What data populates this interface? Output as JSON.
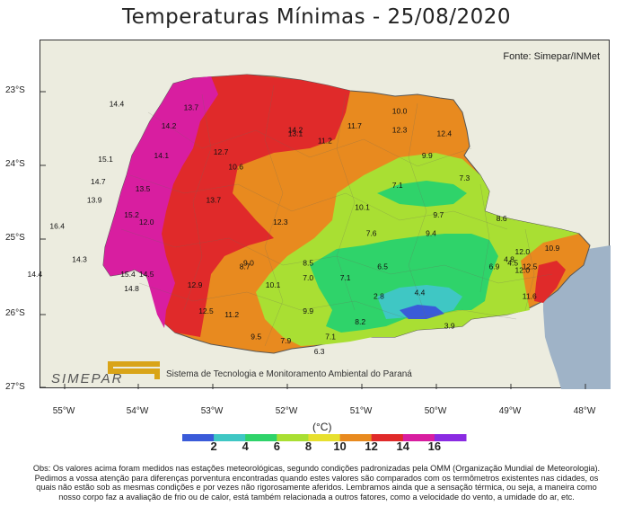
{
  "title": "Temperaturas Mínimas - 25/08/2020",
  "source": "Fonte: Simepar/INMet",
  "logo": {
    "name": "SIMEPAR",
    "subtitle": "Sistema de Tecnologia e Monitoramento Ambiental do Paraná"
  },
  "axes": {
    "lat_labels": [
      "23°S",
      "24°S",
      "25°S",
      "26°S",
      "27°S"
    ],
    "lon_labels": [
      "55°W",
      "54°W",
      "53°W",
      "52°W",
      "51°W",
      "50°W",
      "49°W",
      "48°W"
    ]
  },
  "legend": {
    "unit": "(°C)",
    "ticks": [
      "2",
      "4",
      "6",
      "8",
      "10",
      "12",
      "14",
      "16"
    ],
    "colors": [
      "#3a5bd9",
      "#3fc7c4",
      "#2fd36a",
      "#a9df33",
      "#e7e02f",
      "#e88a1f",
      "#e02a2a",
      "#d81ea0",
      "#8a2be2"
    ]
  },
  "colors": {
    "c16": "#d81ea0",
    "c14": "#e02a2a",
    "c12": "#e88a1f",
    "c10": "#a9df33",
    "c8": "#2fd36a",
    "c6": "#3fc7c4",
    "c4": "#3a5bd9",
    "sea": "#9fb3c7",
    "land": "#ececdf"
  },
  "stations": [
    {
      "v": "14.4",
      "x": -54.4,
      "y": -23.2
    },
    {
      "v": "13.7",
      "x": -53.4,
      "y": -23.25
    },
    {
      "v": "14.2",
      "x": -53.7,
      "y": -23.5
    },
    {
      "v": "14.2",
      "x": -52.0,
      "y": -23.55
    },
    {
      "v": "13.1",
      "x": -52.0,
      "y": -23.6
    },
    {
      "v": "11.2",
      "x": -51.6,
      "y": -23.7
    },
    {
      "v": "11.7",
      "x": -51.2,
      "y": -23.5
    },
    {
      "v": "10.0",
      "x": -50.6,
      "y": -23.3
    },
    {
      "v": "12.3",
      "x": -50.6,
      "y": -23.55
    },
    {
      "v": "12.4",
      "x": -50.0,
      "y": -23.6
    },
    {
      "v": "15.1",
      "x": -54.55,
      "y": -23.95
    },
    {
      "v": "14.1",
      "x": -53.8,
      "y": -23.9
    },
    {
      "v": "12.7",
      "x": -53.0,
      "y": -23.85
    },
    {
      "v": "9.9",
      "x": -50.2,
      "y": -23.9
    },
    {
      "v": "10.6",
      "x": -52.8,
      "y": -24.05
    },
    {
      "v": "14.7",
      "x": -54.65,
      "y": -24.25
    },
    {
      "v": "13.5",
      "x": -54.05,
      "y": -24.35
    },
    {
      "v": "13.9",
      "x": -54.7,
      "y": -24.5
    },
    {
      "v": "13.7",
      "x": -53.1,
      "y": -24.5
    },
    {
      "v": "7.1",
      "x": -50.6,
      "y": -24.3
    },
    {
      "v": "7.3",
      "x": -49.7,
      "y": -24.2
    },
    {
      "v": "10.1",
      "x": -51.1,
      "y": -24.6
    },
    {
      "v": "15.2",
      "x": -54.2,
      "y": -24.7
    },
    {
      "v": "12.0",
      "x": -54.0,
      "y": -24.8
    },
    {
      "v": "12.3",
      "x": -52.2,
      "y": -24.8
    },
    {
      "v": "9.7",
      "x": -50.05,
      "y": -24.7
    },
    {
      "v": "8.6",
      "x": -49.2,
      "y": -24.75
    },
    {
      "v": "16.4",
      "x": -55.2,
      "y": -24.85
    },
    {
      "v": "7.6",
      "x": -50.95,
      "y": -24.95
    },
    {
      "v": "9.4",
      "x": -50.15,
      "y": -24.95
    },
    {
      "v": "12.0",
      "x": -48.95,
      "y": -25.2
    },
    {
      "v": "10.9",
      "x": -48.55,
      "y": -25.15
    },
    {
      "v": "14.3",
      "x": -54.9,
      "y": -25.3
    },
    {
      "v": "9.0",
      "x": -52.6,
      "y": -25.35
    },
    {
      "v": "8.7",
      "x": -52.65,
      "y": -25.4
    },
    {
      "v": "8.5",
      "x": -51.8,
      "y": -25.35
    },
    {
      "v": "6.5",
      "x": -50.8,
      "y": -25.4
    },
    {
      "v": "4.8",
      "x": -49.1,
      "y": -25.3
    },
    {
      "v": "4.5",
      "x": -49.05,
      "y": -25.35
    },
    {
      "v": "6.9",
      "x": -49.3,
      "y": -25.4
    },
    {
      "v": "12.5",
      "x": -48.85,
      "y": -25.4
    },
    {
      "v": "12.0",
      "x": -48.95,
      "y": -25.45
    },
    {
      "v": "14.4",
      "x": -55.5,
      "y": -25.5
    },
    {
      "v": "15.4",
      "x": -54.25,
      "y": -25.5
    },
    {
      "v": "14.5",
      "x": -54.0,
      "y": -25.5
    },
    {
      "v": "7.0",
      "x": -51.8,
      "y": -25.55
    },
    {
      "v": "7.1",
      "x": -51.3,
      "y": -25.55
    },
    {
      "v": "10.1",
      "x": -52.3,
      "y": -25.65
    },
    {
      "v": "12.9",
      "x": -53.35,
      "y": -25.65
    },
    {
      "v": "14.8",
      "x": -54.2,
      "y": -25.7
    },
    {
      "v": "4.4",
      "x": -50.3,
      "y": -25.75
    },
    {
      "v": "2.8",
      "x": -50.85,
      "y": -25.8
    },
    {
      "v": "11.6",
      "x": -48.85,
      "y": -25.8
    },
    {
      "v": "12.5",
      "x": -53.2,
      "y": -26.0
    },
    {
      "v": "11.2",
      "x": -52.85,
      "y": -26.05
    },
    {
      "v": "9.9",
      "x": -51.8,
      "y": -26.0
    },
    {
      "v": "8.2",
      "x": -51.1,
      "y": -26.15
    },
    {
      "v": "3.9",
      "x": -49.9,
      "y": -26.2
    },
    {
      "v": "9.5",
      "x": -52.5,
      "y": -26.35
    },
    {
      "v": "7.9",
      "x": -52.1,
      "y": -26.4
    },
    {
      "v": "7.1",
      "x": -51.5,
      "y": -26.35
    },
    {
      "v": "6.3",
      "x": -51.65,
      "y": -26.55
    }
  ],
  "footnote": "Obs: Os valores acima foram medidos nas estações meteorológicas, segundo condições padronizadas pela OMM (Organização Mundial de Meteorologia). Pedimos a vossa atenção para diferenças porventura encontradas quando estes valores são comparados com os termômetros existentes nas cidades, os quais não estão sob as mesmas condições e por vezes não rigorosamente aferidos. Lembramos ainda que a sensação térmica, ou seja, a maneira como nosso corpo faz a avaliação de frio ou de calor, está também relacionada a outros fatores, como a velocidade do vento, a umidade do ar, etc."
}
